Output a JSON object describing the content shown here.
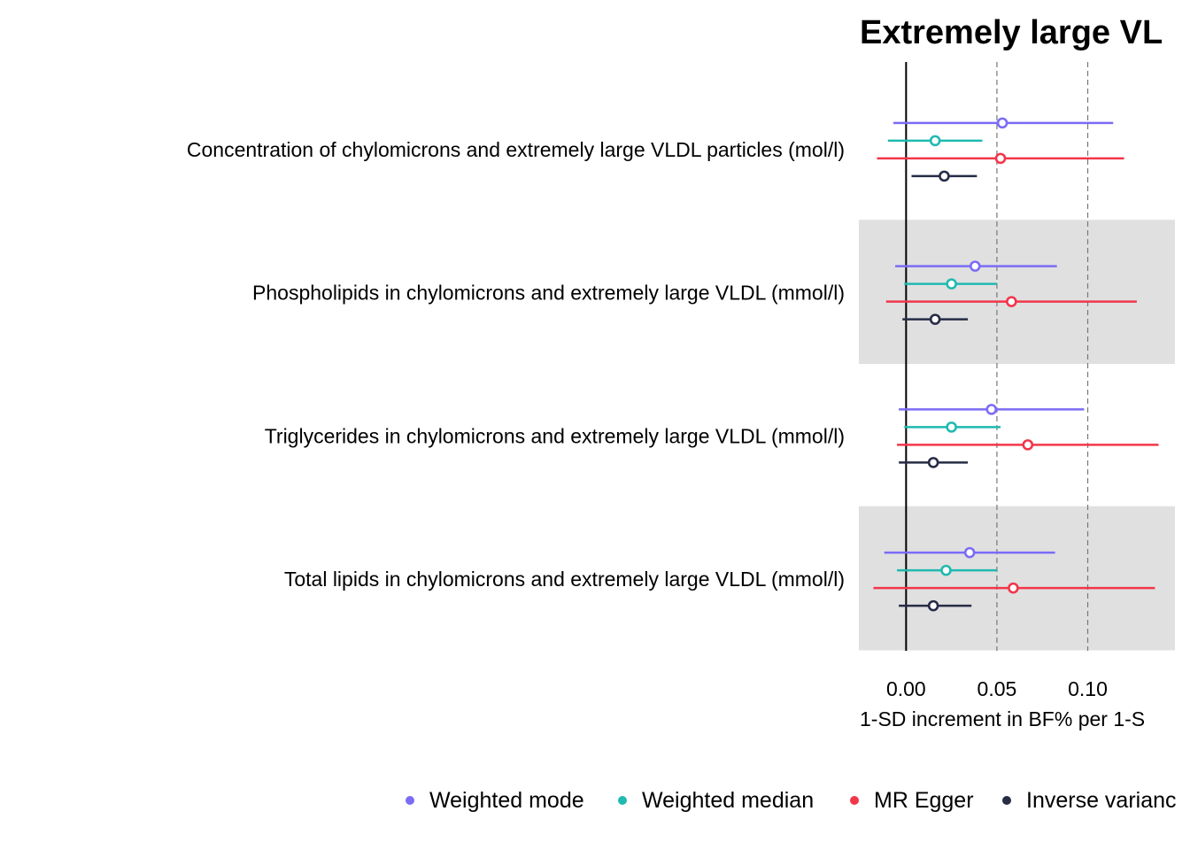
{
  "chart_data": {
    "type": "forest",
    "title": "Extremely large VL",
    "xlabel": "1-SD increment in BF% per 1-S",
    "xlim": [
      -0.026,
      0.148
    ],
    "xticks": [
      0.0,
      0.05,
      0.1
    ],
    "xtick_labels": [
      "0.00",
      "0.05",
      "0.10"
    ],
    "reference_line": 0,
    "dashed_lines": [
      0.05,
      0.1
    ],
    "legend_position": "bottom",
    "categories": [
      "Concentration of chylomicrons and extremely large VLDL particles (mol/l)",
      "Phospholipids in chylomicrons and extremely large VLDL (mmol/l)",
      "Triglycerides in chylomicrons and extremely large VLDL (mmol/l)",
      "Total lipids in chylomicrons and extremely large VLDL (mmol/l)"
    ],
    "shaded_rows": [
      1,
      3
    ],
    "series": [
      {
        "name": "Weighted mode",
        "color": "#7B6CF6",
        "estimates": [
          0.053,
          0.038,
          0.047,
          0.035
        ],
        "lower": [
          -0.007,
          -0.006,
          -0.004,
          -0.012
        ],
        "upper": [
          0.114,
          0.083,
          0.098,
          0.082
        ]
      },
      {
        "name": "Weighted median",
        "color": "#1FBAB0",
        "estimates": [
          0.016,
          0.025,
          0.025,
          0.022
        ],
        "lower": [
          -0.01,
          -0.001,
          -0.001,
          -0.005
        ],
        "upper": [
          0.042,
          0.05,
          0.052,
          0.05
        ]
      },
      {
        "name": "MR Egger",
        "color": "#F2364A",
        "estimates": [
          0.052,
          0.058,
          0.067,
          0.059
        ],
        "lower": [
          -0.016,
          -0.011,
          -0.005,
          -0.018
        ],
        "upper": [
          0.12,
          0.127,
          0.139,
          0.137
        ]
      },
      {
        "name": "Inverse variance weighted",
        "legend_label": "Inverse varianc",
        "color": "#262C45",
        "estimates": [
          0.021,
          0.016,
          0.015,
          0.015
        ],
        "lower": [
          0.003,
          -0.002,
          -0.004,
          -0.004
        ],
        "upper": [
          0.039,
          0.034,
          0.034,
          0.036
        ]
      }
    ]
  }
}
